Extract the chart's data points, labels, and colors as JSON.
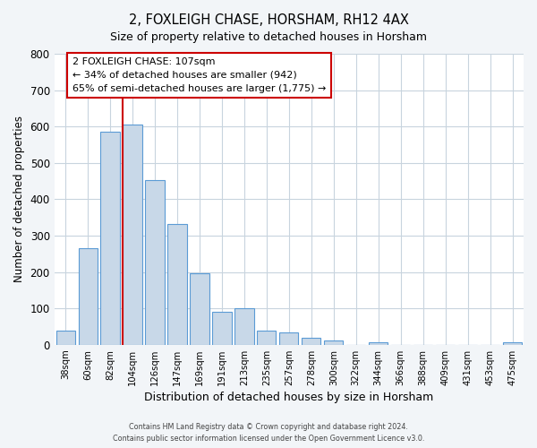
{
  "title": "2, FOXLEIGH CHASE, HORSHAM, RH12 4AX",
  "subtitle": "Size of property relative to detached houses in Horsham",
  "xlabel": "Distribution of detached houses by size in Horsham",
  "ylabel": "Number of detached properties",
  "bar_labels": [
    "38sqm",
    "60sqm",
    "82sqm",
    "104sqm",
    "126sqm",
    "147sqm",
    "169sqm",
    "191sqm",
    "213sqm",
    "235sqm",
    "257sqm",
    "278sqm",
    "300sqm",
    "322sqm",
    "344sqm",
    "366sqm",
    "388sqm",
    "409sqm",
    "431sqm",
    "453sqm",
    "475sqm"
  ],
  "bar_values": [
    38,
    265,
    585,
    605,
    453,
    333,
    197,
    90,
    100,
    40,
    33,
    20,
    12,
    0,
    7,
    0,
    0,
    0,
    0,
    0,
    7
  ],
  "bar_color": "#c8d8e8",
  "bar_edge_color": "#5b9bd5",
  "vline_x_idx": 3,
  "vline_color": "#cc0000",
  "ylim": [
    0,
    800
  ],
  "yticks": [
    0,
    100,
    200,
    300,
    400,
    500,
    600,
    700,
    800
  ],
  "annotation_title": "2 FOXLEIGH CHASE: 107sqm",
  "annotation_line1": "← 34% of detached houses are smaller (942)",
  "annotation_line2": "65% of semi-detached houses are larger (1,775) →",
  "annotation_box_color": "#ffffff",
  "annotation_box_edge": "#cc0000",
  "footer_line1": "Contains HM Land Registry data © Crown copyright and database right 2024.",
  "footer_line2": "Contains public sector information licensed under the Open Government Licence v3.0.",
  "background_color": "#f2f5f8",
  "plot_background": "#ffffff",
  "grid_color": "#c8d4de"
}
